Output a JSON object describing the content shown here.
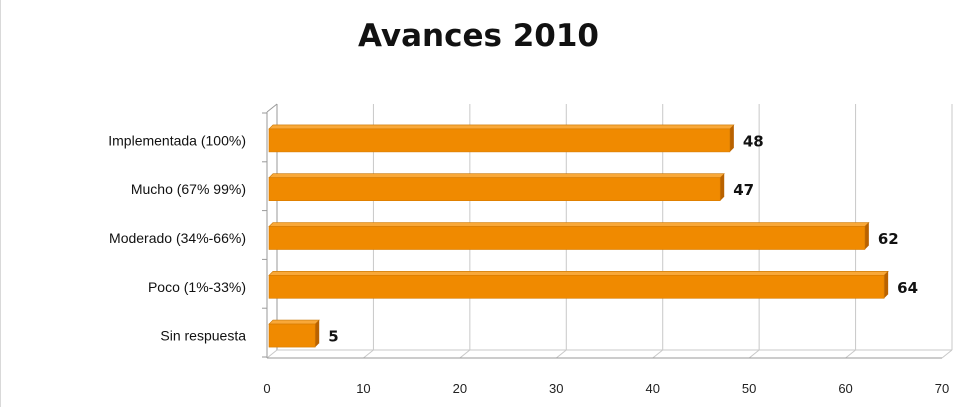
{
  "chart_data": {
    "type": "bar",
    "orientation": "horizontal",
    "title": "Avances 2010",
    "xlabel": "",
    "ylabel": "",
    "categories": [
      "Implementada (100%)",
      "Mucho (67% 99%)",
      "Moderado (34%-66%)",
      "Poco (1%-33%)",
      "Sin respuesta"
    ],
    "values": [
      48,
      47,
      62,
      64,
      5
    ],
    "xlim": [
      0,
      70
    ],
    "xticks": [
      0,
      10,
      20,
      30,
      40,
      50,
      60,
      70
    ],
    "grid": true,
    "legend": "none",
    "bar_color": "#F08A00",
    "bar_top_color": "#F9A838",
    "bar_side_color": "#B96200",
    "data_labels": true
  }
}
